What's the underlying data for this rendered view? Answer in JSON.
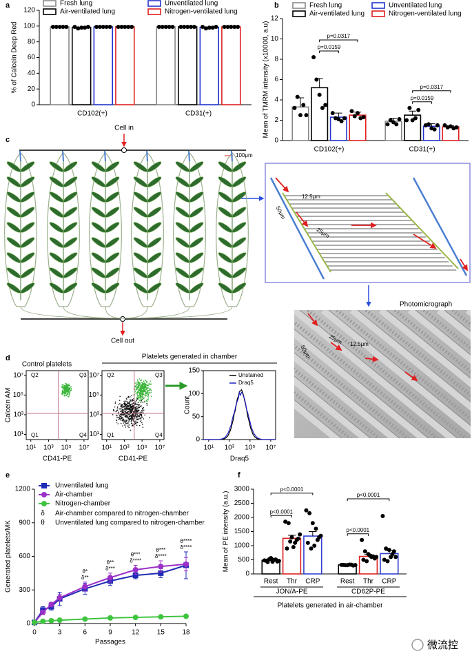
{
  "panel_labels": [
    "a",
    "b",
    "c",
    "d",
    "e",
    "f"
  ],
  "chart_data": [
    {
      "type": "bar",
      "ylabel": "% of Calcein Deep Red",
      "legend": "top",
      "categories": [
        "CD102(+)",
        "CD31(+)"
      ],
      "series": [
        {
          "name": "Fresh lung",
          "color": "#888888",
          "values": [
            99,
            99
          ],
          "points": [
            [
              99,
              99,
              99,
              99,
              99
            ],
            [
              99,
              99,
              99,
              99,
              99
            ]
          ]
        },
        {
          "name": "Air-ventilated lung",
          "color": "#000000",
          "values": [
            98.4,
            99
          ],
          "points": [
            [
              99,
              97,
              98,
              98,
              99
            ],
            [
              99,
              99,
              99,
              99,
              99
            ]
          ]
        },
        {
          "name": "Unventilated lung",
          "color": "#2233cc",
          "values": [
            99,
            98.4
          ],
          "points": [
            [
              99,
              99,
              99,
              99,
              99
            ],
            [
              99,
              97,
              98,
              98,
              99
            ]
          ]
        },
        {
          "name": "Nitrogen-ventilated lung",
          "color": "#e02020",
          "values": [
            99,
            99
          ],
          "points": [
            [
              99,
              99,
              99,
              99,
              99
            ],
            [
              99,
              99,
              99,
              99,
              99
            ]
          ]
        }
      ],
      "ylim": [
        0,
        120
      ],
      "yticks": [
        0,
        20,
        40,
        60,
        80,
        100,
        120
      ]
    },
    {
      "type": "bar",
      "ylabel": "Mean of TMRM intensity (x10000, a.u)",
      "legend": "top",
      "categories": [
        "CD102(+)",
        "CD31(+)"
      ],
      "series": [
        {
          "name": "Fresh lung",
          "color": "#888888",
          "values": [
            3.3,
            1.9
          ],
          "errors": [
            0.9,
            0.3
          ],
          "points": [
            [
              3.2,
              4.3,
              2.5,
              3.5,
              2.5
            ],
            [
              1.6,
              2.0,
              1.8,
              1.6,
              2.1
            ]
          ]
        },
        {
          "name": "Air-ventilated lung",
          "color": "#000000",
          "values": [
            5.2,
            2.5
          ],
          "errors": [
            0.9,
            0.4
          ],
          "points": [
            [
              8.2,
              6.0,
              4.5,
              3.2,
              3.5
            ],
            [
              2.0,
              3.2,
              2.0,
              2.2,
              3.0
            ]
          ]
        },
        {
          "name": "Unventilated lung",
          "color": "#2233cc",
          "values": [
            2.3,
            1.4
          ],
          "errors": [
            0.4,
            0.25
          ],
          "points": [
            [
              2.7,
              2.2,
              2.1,
              1.9,
              2.2
            ],
            [
              1.5,
              1.6,
              1.2,
              1.1,
              1.5
            ]
          ]
        },
        {
          "name": "Nitrogen-ventilated lung",
          "color": "#e02020",
          "values": [
            2.5,
            1.35
          ],
          "errors": [
            0.3,
            0.1
          ],
          "points": [
            [
              2.9,
              2.4,
              2.7,
              2.2,
              2.3
            ],
            [
              1.5,
              1.3,
              1.4,
              1.2,
              1.3
            ]
          ]
        }
      ],
      "comparisons": [
        {
          "text": "p=0.0159",
          "category": 0,
          "between": [
            1,
            2
          ]
        },
        {
          "text": "p=0.0317",
          "category": 0,
          "between": [
            1,
            3
          ]
        },
        {
          "text": "p=0.0159",
          "category": 1,
          "between": [
            1,
            2
          ]
        },
        {
          "text": "p=0.0317",
          "category": 1,
          "between": [
            1,
            3
          ]
        }
      ],
      "ylim": [
        0,
        12
      ],
      "yticks": [
        0,
        2,
        4,
        6,
        8,
        10,
        12
      ]
    },
    {
      "type": "line",
      "xlabel": "Passages",
      "ylabel": "Generated platelets/MK",
      "x": [
        0,
        1,
        2,
        3,
        6,
        9,
        12,
        15,
        18
      ],
      "series": [
        {
          "name": "Unventilated lung",
          "color": "#1f2bb5",
          "marker": "square",
          "values": [
            10,
            120,
            150,
            220,
            310,
            380,
            430,
            450,
            520
          ],
          "errors": [
            5,
            30,
            30,
            60,
            50,
            40,
            30,
            40,
            120
          ]
        },
        {
          "name": "Air-chamber",
          "color": "#9b30c8",
          "marker": "circle",
          "values": [
            10,
            100,
            170,
            230,
            330,
            410,
            480,
            510,
            530
          ],
          "errors": [
            5,
            20,
            20,
            30,
            40,
            40,
            40,
            50,
            60
          ]
        },
        {
          "name": "Nitrogen-chamber",
          "color": "#3fc43f",
          "marker": "circle",
          "values": [
            10,
            20,
            25,
            30,
            40,
            50,
            55,
            60,
            65
          ]
        }
      ],
      "notes": [
        {
          "symbol": "δ",
          "text": "Air-chamber compared to nitrogen-chamber"
        },
        {
          "symbol": "θ",
          "text": "Unventilated lung compared to nitrogen-chamber"
        }
      ],
      "annotations": [
        {
          "x": 6,
          "lines": [
            "θ*",
            "δ**"
          ]
        },
        {
          "x": 9,
          "lines": [
            "θ**",
            "δ***"
          ]
        },
        {
          "x": 12,
          "lines": [
            "θ***",
            "δ****"
          ]
        },
        {
          "x": 15,
          "lines": [
            "θ***",
            "δ****"
          ]
        },
        {
          "x": 18,
          "lines": [
            "θ****",
            "δ****"
          ]
        }
      ],
      "xlim": [
        0,
        18
      ],
      "xticks": [
        0,
        3,
        6,
        9,
        12,
        15,
        18
      ],
      "ylim": [
        0,
        1200
      ],
      "yticks": [
        0,
        300,
        600,
        900,
        1200
      ]
    },
    {
      "type": "bar",
      "ylabel": "Mean of PE intensity (a.u.)",
      "legend": "under-bars",
      "categories": [
        "JON/A-PE",
        "CD62P-PE"
      ],
      "footer": "Platelets generated in air-chamber",
      "series": [
        {
          "name": "Rest",
          "color": "#000000",
          "values": [
            480,
            320
          ],
          "errors": [
            30,
            10
          ],
          "points": [
            [
              480,
              420,
              560,
              500,
              440,
              470,
              520,
              430,
              510,
              460
            ],
            [
              320,
              310,
              330,
              300,
              320,
              310,
              325,
              315
            ]
          ]
        },
        {
          "name": "Thr",
          "color": "#e02020",
          "values": [
            1260,
            620
          ],
          "errors": [
            110,
            70
          ],
          "points": [
            [
              1850,
              1800,
              1300,
              1100,
              1250,
              900,
              1150,
              950,
              1200,
              1400
            ],
            [
              1200,
              800,
              700,
              600,
              550,
              500,
              450,
              650,
              620,
              600
            ]
          ]
        },
        {
          "name": "CRP",
          "color": "#2f3fd0",
          "values": [
            1340,
            720
          ],
          "errors": [
            160,
            110
          ],
          "points": [
            [
              2250,
              2150,
              1800,
              1600,
              1300,
              1100,
              900,
              1000,
              1200,
              1350
            ],
            [
              2050,
              900,
              850,
              700,
              600,
              500,
              450,
              600,
              800
            ]
          ]
        }
      ],
      "comparisons": [
        {
          "text": "p<0.0001",
          "category": 0,
          "between": [
            0,
            1
          ]
        },
        {
          "text": "p<0.0001",
          "category": 0,
          "between": [
            0,
            2
          ]
        },
        {
          "text": "p<0.0001",
          "category": 1,
          "between": [
            0,
            1
          ]
        },
        {
          "text": "p<0.0001",
          "category": 1,
          "between": [
            0,
            2
          ]
        }
      ],
      "ylim": [
        0,
        3000
      ],
      "yticks": [
        0,
        500,
        1000,
        1500,
        2000,
        2500,
        3000
      ]
    }
  ],
  "diagram": {
    "inlet": "Cell in",
    "outlet": "Cell out",
    "scale": "100μm",
    "zoom_labels": {
      "spacing": "12.5μm",
      "width": "50μm",
      "channel": "25μm"
    },
    "photo_title": "Photomicrograph"
  },
  "flow": {
    "titles": [
      "Control platelets",
      "Platelets generated in chamber"
    ],
    "quadrants": [
      "Q2",
      "Q3",
      "Q1",
      "Q4"
    ],
    "xlabel": "CD41-PE",
    "ylabel": "Calcein AM",
    "ticks": [
      {
        "value": 10,
        "label": "10¹"
      },
      {
        "value": 1000,
        "label": "10³"
      },
      {
        "value": 100000,
        "label": "10⁵"
      },
      {
        "value": 10000000,
        "label": "10⁷"
      }
    ],
    "lim": [
      3,
      30000000
    ],
    "histogram": {
      "xlabel": "Draq5",
      "ylabel": "Count",
      "ylim": [
        0,
        150
      ],
      "yticks": [
        0,
        50,
        100,
        150
      ],
      "legend": [
        {
          "name": "Unstained",
          "color": "#000000"
        },
        {
          "name": "Draq5",
          "color": "#2020c0"
        }
      ]
    }
  },
  "watermark": "微流控"
}
